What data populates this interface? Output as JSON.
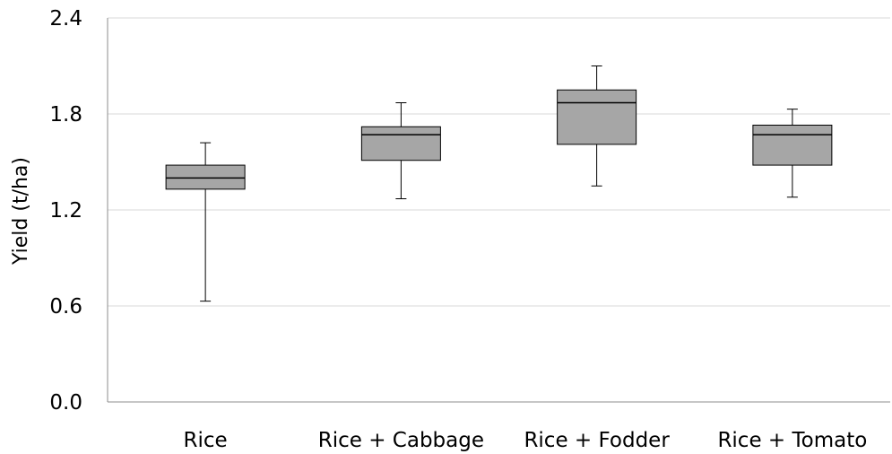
{
  "chart_data": {
    "type": "box",
    "title": "",
    "xlabel": "",
    "ylabel": "Yield (t/ha)",
    "ylim": [
      0.0,
      2.4
    ],
    "yticks": [
      "0.0",
      "0.6",
      "1.2",
      "1.8",
      "2.4"
    ],
    "grid": true,
    "categories": [
      "Rice",
      "Rice + Cabbage",
      "Rice + Fodder",
      "Rice + Tomato"
    ],
    "boxes": [
      {
        "min": 0.63,
        "q1": 1.33,
        "median": 1.4,
        "q3": 1.48,
        "max": 1.62
      },
      {
        "min": 1.27,
        "q1": 1.51,
        "median": 1.67,
        "q3": 1.72,
        "max": 1.87
      },
      {
        "min": 1.35,
        "q1": 1.61,
        "median": 1.87,
        "q3": 1.95,
        "max": 2.1
      },
      {
        "min": 1.28,
        "q1": 1.48,
        "median": 1.67,
        "q3": 1.73,
        "max": 1.83
      }
    ],
    "box_color": "#a6a6a6",
    "line_color": "#000000",
    "grid_color": "#d9d9d9"
  }
}
